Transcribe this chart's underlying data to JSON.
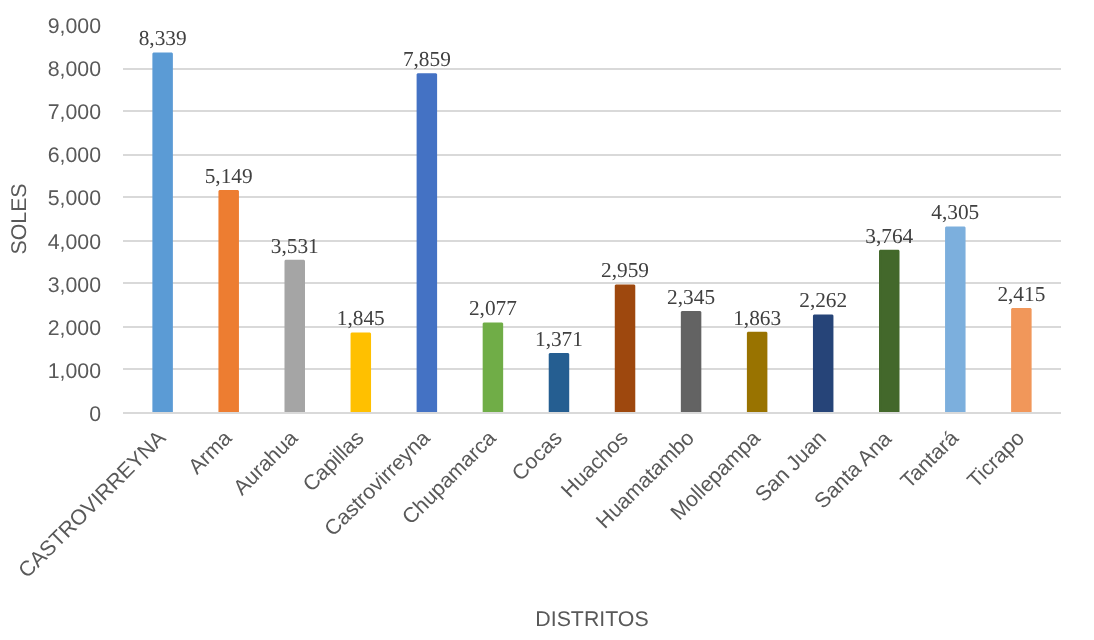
{
  "chart_data": {
    "type": "bar",
    "xlabel": "DISTRITOS",
    "ylabel": "SOLES",
    "categories": [
      "CASTROVIRREYNA",
      "Arma",
      "Aurahua",
      "Capillas",
      "Castrovirreyna",
      "Chupamarca",
      "Cocas",
      "Huachos",
      "Huamatambo",
      "Mollepampa",
      "San Juan",
      "Santa Ana",
      "Tantará",
      "Ticrapo"
    ],
    "values": [
      8339,
      5149,
      3531,
      1845,
      7859,
      2077,
      1371,
      2959,
      2345,
      1863,
      2262,
      3764,
      4305,
      2415
    ],
    "colors": [
      "#5b9bd5",
      "#ed7d31",
      "#a5a5a5",
      "#ffc000",
      "#4472c4",
      "#70ad47",
      "#255e91",
      "#9e480e",
      "#636363",
      "#997300",
      "#264478",
      "#43682b",
      "#7cafdd",
      "#f1975a"
    ],
    "value_labels": [
      "8,339",
      "5,149",
      "3,531",
      "1,845",
      "7,859",
      "2,077",
      "1,371",
      "2,959",
      "2,345",
      "1,863",
      "2,262",
      "3,764",
      "4,305",
      "2,415"
    ],
    "ylim": [
      0,
      9000
    ],
    "yticks": [
      {
        "value": 0,
        "label": "0"
      },
      {
        "value": 1000,
        "label": "1,000"
      },
      {
        "value": 2000,
        "label": "2,000"
      },
      {
        "value": 3000,
        "label": "3,000"
      },
      {
        "value": 4000,
        "label": "4,000"
      },
      {
        "value": 5000,
        "label": "5,000"
      },
      {
        "value": 6000,
        "label": "6,000"
      },
      {
        "value": 7000,
        "label": "7,000"
      },
      {
        "value": 8000,
        "label": "8,000"
      },
      {
        "value": 9000,
        "label": "9,000"
      }
    ],
    "grid": "y"
  }
}
